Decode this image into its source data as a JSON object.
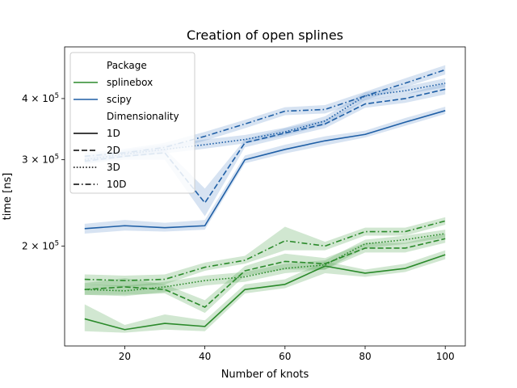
{
  "chart_data": {
    "type": "line",
    "title": "Creation of open splines",
    "xlabel": "Number of knots",
    "ylabel": "time [ns]",
    "x": [
      10,
      20,
      30,
      40,
      50,
      60,
      70,
      80,
      90,
      100
    ],
    "xlim": [
      5,
      105
    ],
    "ylim": [
      125000,
      510000
    ],
    "yscale": "log",
    "xticks": [
      20,
      40,
      60,
      80,
      100
    ],
    "yticks": [
      {
        "value": 200000,
        "mantissa": "2",
        "base": "10",
        "exp": "5"
      },
      {
        "value": 300000,
        "mantissa": "3",
        "base": "10",
        "exp": "5"
      },
      {
        "value": 400000,
        "mantissa": "4",
        "base": "10",
        "exp": "5"
      }
    ],
    "colors": {
      "splinebox": "#2b8a2b",
      "scipy": "#1f5fa6",
      "splinebox_band": "#5aa85a",
      "scipy_band": "#6f9bd0"
    },
    "legend": {
      "placement": "upper-left",
      "hue_title": "Package",
      "hue_entries": [
        {
          "label": "splinebox",
          "package": "splinebox"
        },
        {
          "label": "scipy",
          "package": "scipy"
        }
      ],
      "style_title": "Dimensionality",
      "style_entries": [
        {
          "label": "1D",
          "dash": "solid"
        },
        {
          "label": "2D",
          "dash": "dashed"
        },
        {
          "label": "3D",
          "dash": "dotted"
        },
        {
          "label": "10D",
          "dash": "dashdot"
        }
      ]
    },
    "series": [
      {
        "package": "scipy",
        "dim": "1D",
        "dash": "solid",
        "values": [
          217000,
          220000,
          218000,
          220000,
          300000,
          315000,
          328000,
          338000,
          358000,
          378000
        ],
        "lower": [
          212000,
          215000,
          214000,
          216000,
          295000,
          309000,
          321000,
          333000,
          352000,
          372000
        ],
        "upper": [
          222000,
          226000,
          223000,
          226000,
          306000,
          322000,
          335000,
          344000,
          365000,
          385000
        ]
      },
      {
        "package": "scipy",
        "dim": "2D",
        "dash": "dashed",
        "values": [
          298000,
          305000,
          310000,
          245000,
          325000,
          340000,
          355000,
          390000,
          400000,
          418000
        ],
        "lower": [
          294000,
          300000,
          300000,
          230000,
          318000,
          333000,
          348000,
          383000,
          392000,
          408000
        ],
        "upper": [
          303000,
          312000,
          316000,
          262000,
          330000,
          348000,
          362000,
          398000,
          408000,
          430000
        ]
      },
      {
        "package": "scipy",
        "dim": "3D",
        "dash": "dotted",
        "values": [
          300000,
          308000,
          315000,
          322000,
          330000,
          342000,
          360000,
          405000,
          415000,
          430000
        ],
        "lower": [
          295000,
          303000,
          309000,
          316000,
          324000,
          336000,
          353000,
          397000,
          408000,
          422000
        ],
        "upper": [
          306000,
          314000,
          322000,
          330000,
          337000,
          349000,
          368000,
          412000,
          423000,
          440000
        ]
      },
      {
        "package": "scipy",
        "dim": "10D",
        "dash": "dashdot",
        "values": [
          305000,
          310000,
          318000,
          335000,
          355000,
          377000,
          380000,
          405000,
          430000,
          458000
        ],
        "lower": [
          300000,
          305000,
          312000,
          328000,
          348000,
          370000,
          373000,
          397000,
          422000,
          448000
        ],
        "upper": [
          310000,
          316000,
          325000,
          342000,
          362000,
          384000,
          388000,
          413000,
          440000,
          468000
        ]
      },
      {
        "package": "splinebox",
        "dim": "1D",
        "dash": "solid",
        "values": [
          142000,
          135000,
          139000,
          137000,
          163000,
          167000,
          182000,
          176000,
          180000,
          192000
        ],
        "lower": [
          134000,
          133000,
          135000,
          134000,
          160000,
          164000,
          176000,
          173000,
          177000,
          188000
        ],
        "upper": [
          152000,
          138000,
          145000,
          141000,
          167000,
          171000,
          186000,
          179000,
          184000,
          196000
        ]
      },
      {
        "package": "splinebox",
        "dim": "2D",
        "dash": "dashed",
        "values": [
          163000,
          165000,
          163000,
          150000,
          178000,
          186000,
          184000,
          198000,
          198000,
          207000
        ],
        "lower": [
          159000,
          159000,
          160000,
          146000,
          174000,
          179000,
          179000,
          194000,
          194000,
          203000
        ],
        "upper": [
          168000,
          172000,
          167000,
          155000,
          182000,
          193000,
          189000,
          203000,
          203000,
          212000
        ]
      },
      {
        "package": "splinebox",
        "dim": "3D",
        "dash": "dotted",
        "values": [
          163000,
          162000,
          165000,
          170000,
          173000,
          180000,
          183000,
          202000,
          206000,
          212000
        ],
        "lower": [
          159000,
          158000,
          161000,
          166000,
          169000,
          176000,
          179000,
          198000,
          202000,
          208000
        ],
        "upper": [
          167000,
          166000,
          169000,
          174000,
          177000,
          184000,
          187000,
          206000,
          210000,
          216000
        ]
      },
      {
        "package": "splinebox",
        "dim": "10D",
        "dash": "dashdot",
        "values": [
          171000,
          170000,
          171000,
          181000,
          187000,
          205000,
          200000,
          214000,
          214000,
          225000
        ],
        "lower": [
          167000,
          165000,
          167000,
          178000,
          184000,
          196000,
          196000,
          210000,
          210000,
          221000
        ],
        "upper": [
          175000,
          174000,
          175000,
          185000,
          191000,
          219000,
          204000,
          218000,
          218000,
          229000
        ]
      }
    ]
  }
}
